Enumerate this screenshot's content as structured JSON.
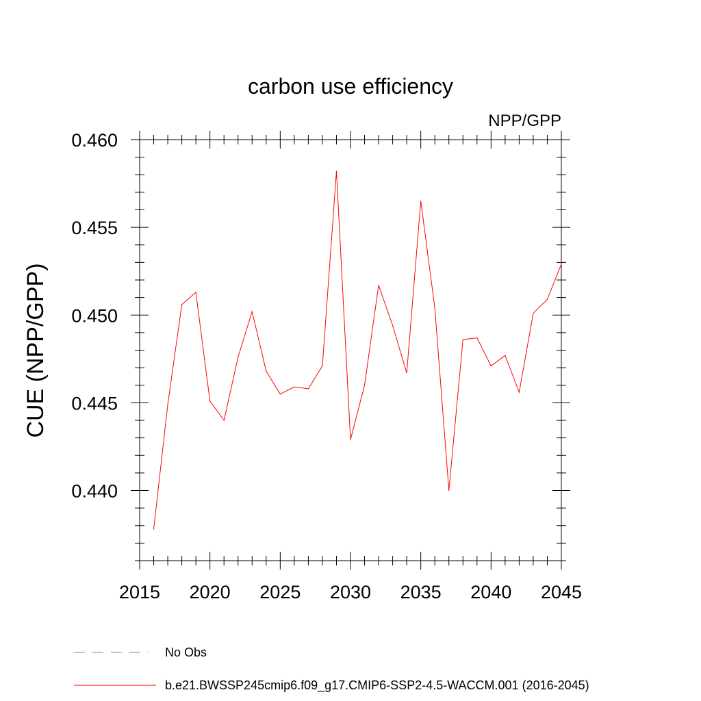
{
  "chart_data": {
    "type": "line",
    "title": "carbon use efficiency",
    "subtitle_right": "NPP/GPP",
    "xlabel": "",
    "ylabel": "CUE  (NPP/GPP)",
    "xlim": [
      2015,
      2045
    ],
    "ylim": [
      0.436,
      0.46
    ],
    "x_ticks": [
      2015,
      2020,
      2025,
      2030,
      2035,
      2040,
      2045
    ],
    "x_tick_labels": [
      "2015",
      "2020",
      "2025",
      "2030",
      "2035",
      "2040",
      "2045"
    ],
    "y_ticks": [
      0.44,
      0.445,
      0.45,
      0.455,
      0.46
    ],
    "y_tick_labels": [
      "0.440",
      "0.445",
      "0.450",
      "0.455",
      "0.460"
    ],
    "grid": false,
    "series": [
      {
        "name": "b.e21.BWSSP245cmip6.f09_g17.CMIP6-SSP2-4.5-WACCM.001 (2016-2045)",
        "color": "#ff0000",
        "x": [
          2016,
          2017,
          2018,
          2019,
          2020,
          2021,
          2022,
          2023,
          2024,
          2025,
          2026,
          2027,
          2028,
          2029,
          2030,
          2031,
          2032,
          2033,
          2034,
          2035,
          2036,
          2037,
          2038,
          2039,
          2040,
          2041,
          2042,
          2043,
          2044,
          2045
        ],
        "values": [
          0.4378,
          0.4449,
          0.4506,
          0.4513,
          0.4451,
          0.444,
          0.4476,
          0.4502,
          0.4468,
          0.4455,
          0.4459,
          0.4458,
          0.4471,
          0.4582,
          0.4429,
          0.446,
          0.4517,
          0.4494,
          0.4467,
          0.4565,
          0.4504,
          0.44,
          0.4486,
          0.4487,
          0.4471,
          0.4477,
          0.4456,
          0.4501,
          0.4509,
          0.4529
        ]
      }
    ],
    "legend": [
      {
        "label": "No Obs",
        "color": "#8080c0",
        "style": "dashed"
      },
      {
        "label": "b.e21.BWSSP245cmip6.f09_g17.CMIP6-SSP2-4.5-WACCM.001 (2016-2045)",
        "color": "#ff0000",
        "style": "solid"
      }
    ]
  }
}
